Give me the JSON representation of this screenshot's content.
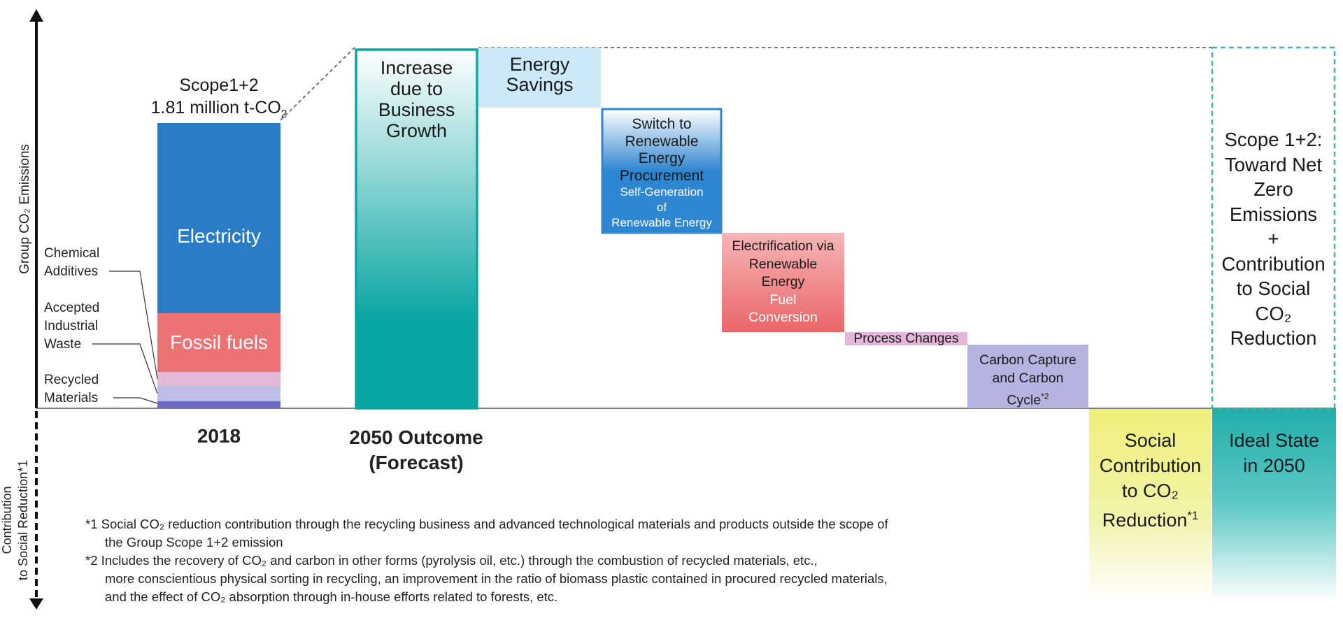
{
  "axes": {
    "y_positive_label": "Group CO₂ Emissions",
    "y_negative_label_line1": "Contribution",
    "y_negative_label_line2": "to Social Reduction*1"
  },
  "chart_data": {
    "type": "waterfall",
    "unit": "million t-CO₂",
    "scale_max": 1.0,
    "categories": [
      {
        "id": "base-2018",
        "label": "2018",
        "base": 0,
        "value": 1.0
      },
      {
        "id": "business-growth",
        "label": "Increase due to Business Growth",
        "base": 0,
        "value": 1.28,
        "kind": "increase"
      },
      {
        "id": "energy-savings",
        "label": "Energy Savings",
        "base": 1.28,
        "value": -0.17
      },
      {
        "id": "renewable",
        "label": "Switch to Renewable Energy Procurement / Self-Generation of Renewable Energy",
        "base": 1.11,
        "value": -0.45
      },
      {
        "id": "electrification",
        "label": "Electrification via Renewable Energy / Fuel Conversion",
        "base": 0.66,
        "value": -0.35
      },
      {
        "id": "process",
        "label": "Process Changes",
        "base": 0.31,
        "value": -0.04
      },
      {
        "id": "carbon-capture",
        "label": "Carbon Capture and Carbon Cycle*2",
        "base": 0.27,
        "value": -0.27
      },
      {
        "id": "social",
        "label": "Social Contribution to CO₂ Reduction*1",
        "base": 0,
        "value": -0.4
      },
      {
        "id": "ideal",
        "label": "Ideal State in 2050",
        "base": 0,
        "value": 0
      }
    ],
    "base_2018_stack": [
      {
        "name": "Electricity",
        "value": 0.67,
        "color": "#2b7cc7"
      },
      {
        "name": "Fossil fuels",
        "value": 0.2,
        "color": "#ec7273"
      },
      {
        "name": "Chemical Additives",
        "value": 0.05,
        "color": "#e3b8d8"
      },
      {
        "name": "Accepted Industrial Waste",
        "value": 0.05,
        "color": "#bdbde6"
      },
      {
        "name": "Recycled Materials",
        "value": 0.03,
        "color": "#6b6bc2"
      }
    ]
  },
  "bars": {
    "scope_title": "Scope1+2",
    "scope_value_text": "1.81 million t-CO",
    "scope_value_sub": "2",
    "electricity": "Electricity",
    "fossil": "Fossil fuels",
    "chemical_line1": "Chemical",
    "chemical_line2": "Additives",
    "waste_line1": "Accepted",
    "waste_line2": "Industrial",
    "waste_line3": "Waste",
    "recycled_line1": "Recycled",
    "recycled_line2": "Materials",
    "growth_line1": "Increase",
    "growth_line2": "due to",
    "growth_line3": "Business",
    "growth_line4": "Growth",
    "savings_line1": "Energy",
    "savings_line2": "Savings",
    "renew_line1": "Switch to",
    "renew_line2": "Renewable",
    "renew_line3": "Energy",
    "renew_line4": "Procurement",
    "renew_sub1": "Self-Generation",
    "renew_sub2": "of",
    "renew_sub3": "Renewable Energy",
    "elec_line1": "Electrification via",
    "elec_line2": "Renewable",
    "elec_line3": "Energy",
    "elec_sub1": "Fuel",
    "elec_sub2": "Conversion",
    "process": "Process Changes",
    "capture_line1": "Carbon Capture",
    "capture_line2": "and Carbon",
    "capture_line3": "Cycle",
    "capture_sup": "*2",
    "netzero_line1": "Scope 1+2:",
    "netzero_line2": "Toward Net",
    "netzero_line3": "Zero",
    "netzero_line4": "Emissions",
    "netzero_line5": "+",
    "netzero_line6": "Contribution",
    "netzero_line7": "to Social",
    "netzero_line8": "CO₂",
    "netzero_line9": "Reduction",
    "social_line1": "Social",
    "social_line2": "Contribution",
    "social_line3": "to CO₂",
    "social_line4": "Reduction",
    "social_sup": "*1",
    "ideal_line1": "Ideal State",
    "ideal_line2": "in 2050"
  },
  "x_labels": {
    "year_2018": "2018",
    "outcome_line1": "2050 Outcome",
    "outcome_line2": "(Forecast)"
  },
  "notes": {
    "n1_line1": "*1 Social CO₂ reduction contribution through the recycling business and advanced technological materials and products outside the scope of",
    "n1_line2": "the Group Scope 1+2 emission",
    "n2_line1": "*2 Includes the recovery of CO₂ and carbon in other forms (pyrolysis oil, etc.) through the combustion of recycled materials, etc.,",
    "n2_line2": "more conscientious physical sorting in recycling, an improvement in the ratio of biomass plastic contained in procured recycled materials,",
    "n2_line3": "and the effect of CO₂ absorption through in-house efforts related to forests, etc."
  },
  "colors": {
    "electricity": "#2b7cc7",
    "fossil": "#ec7273",
    "teal": "#0aa6a2",
    "energy_savings": "#cde9f8",
    "process": "#e6b6da",
    "capture": "#b4b4e0",
    "social": "#eef07a",
    "dashed": "#35b7b2"
  }
}
